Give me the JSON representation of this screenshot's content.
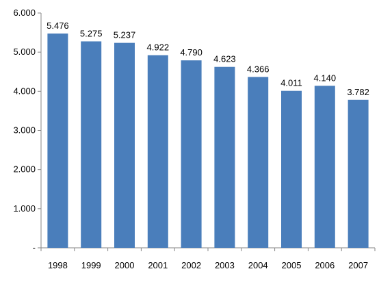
{
  "chart_data": {
    "type": "bar",
    "title": "",
    "xlabel": "",
    "ylabel": "",
    "categories": [
      "1998",
      "1999",
      "2000",
      "2001",
      "2002",
      "2003",
      "2004",
      "2005",
      "2006",
      "2007"
    ],
    "values": [
      5476,
      5275,
      5237,
      4922,
      4790,
      4623,
      4366,
      4011,
      4140,
      3782
    ],
    "data_labels": [
      "5.476",
      "5.275",
      "5.237",
      "4.922",
      "4.790",
      "4.623",
      "4.366",
      "4.011",
      "4.140",
      "3.782"
    ],
    "ylim": [
      0,
      6000
    ],
    "y_ticks": [
      0,
      1000,
      2000,
      3000,
      4000,
      5000,
      6000
    ],
    "y_tick_labels": [
      "-",
      "1.000",
      "2.000",
      "3.000",
      "4.000",
      "5.000",
      "6.000"
    ],
    "bar_color": "#4a7ebb",
    "grid": false,
    "legend": "none"
  }
}
